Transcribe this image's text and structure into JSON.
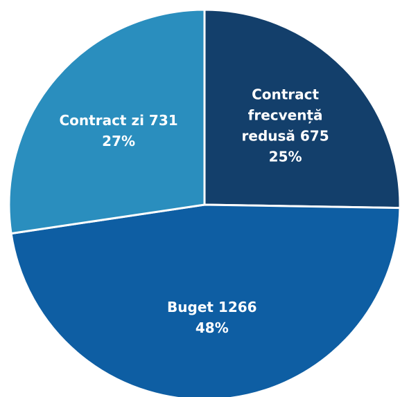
{
  "chart_data": {
    "type": "pie",
    "slices": [
      {
        "label_lines": [
          "Contract",
          "frecvență",
          "redusă 675"
        ],
        "value": 675,
        "percent_label": "25%",
        "color": "#133F6B"
      },
      {
        "label_lines": [
          "Buget 1266"
        ],
        "value": 1266,
        "percent_label": "48%",
        "color": "#0E5EA3"
      },
      {
        "label_lines": [
          "Contract zi 731"
        ],
        "value": 731,
        "percent_label": "27%",
        "color": "#2A8EBE"
      }
    ],
    "separator_color": "#ffffff",
    "label_color": "#ffffff"
  }
}
